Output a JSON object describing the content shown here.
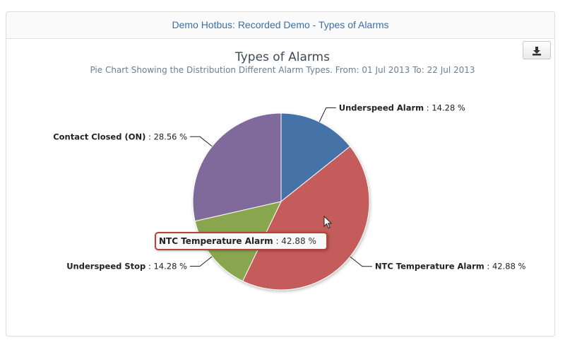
{
  "panel": {
    "header_title": "Demo Hotbus: Recorded Demo - Types of Alarms"
  },
  "toolbar": {
    "export_icon": "download-icon"
  },
  "chart_data": {
    "type": "pie",
    "title": "Types of Alarms",
    "subtitle": "Pie Chart Showing the Distribution Different Alarm Types. From: 01 Jul 2013 To: 22 Jul 2013",
    "slices": [
      {
        "name": "Underspeed Alarm",
        "value": 14.28,
        "label_value": "14.28 %",
        "color": "#4572a7"
      },
      {
        "name": "NTC Temperature Alarm",
        "value": 42.88,
        "label_value": "42.88 %",
        "color": "#c35b5a"
      },
      {
        "name": "Underspeed Stop",
        "value": 14.28,
        "label_value": "14.28 %",
        "color": "#89a54e"
      },
      {
        "name": "Contact Closed (ON)",
        "value": 28.56,
        "label_value": "28.56 %",
        "color": "#80699b"
      }
    ],
    "tooltip": {
      "name": "NTC Temperature Alarm",
      "value": "42.88 %"
    }
  }
}
